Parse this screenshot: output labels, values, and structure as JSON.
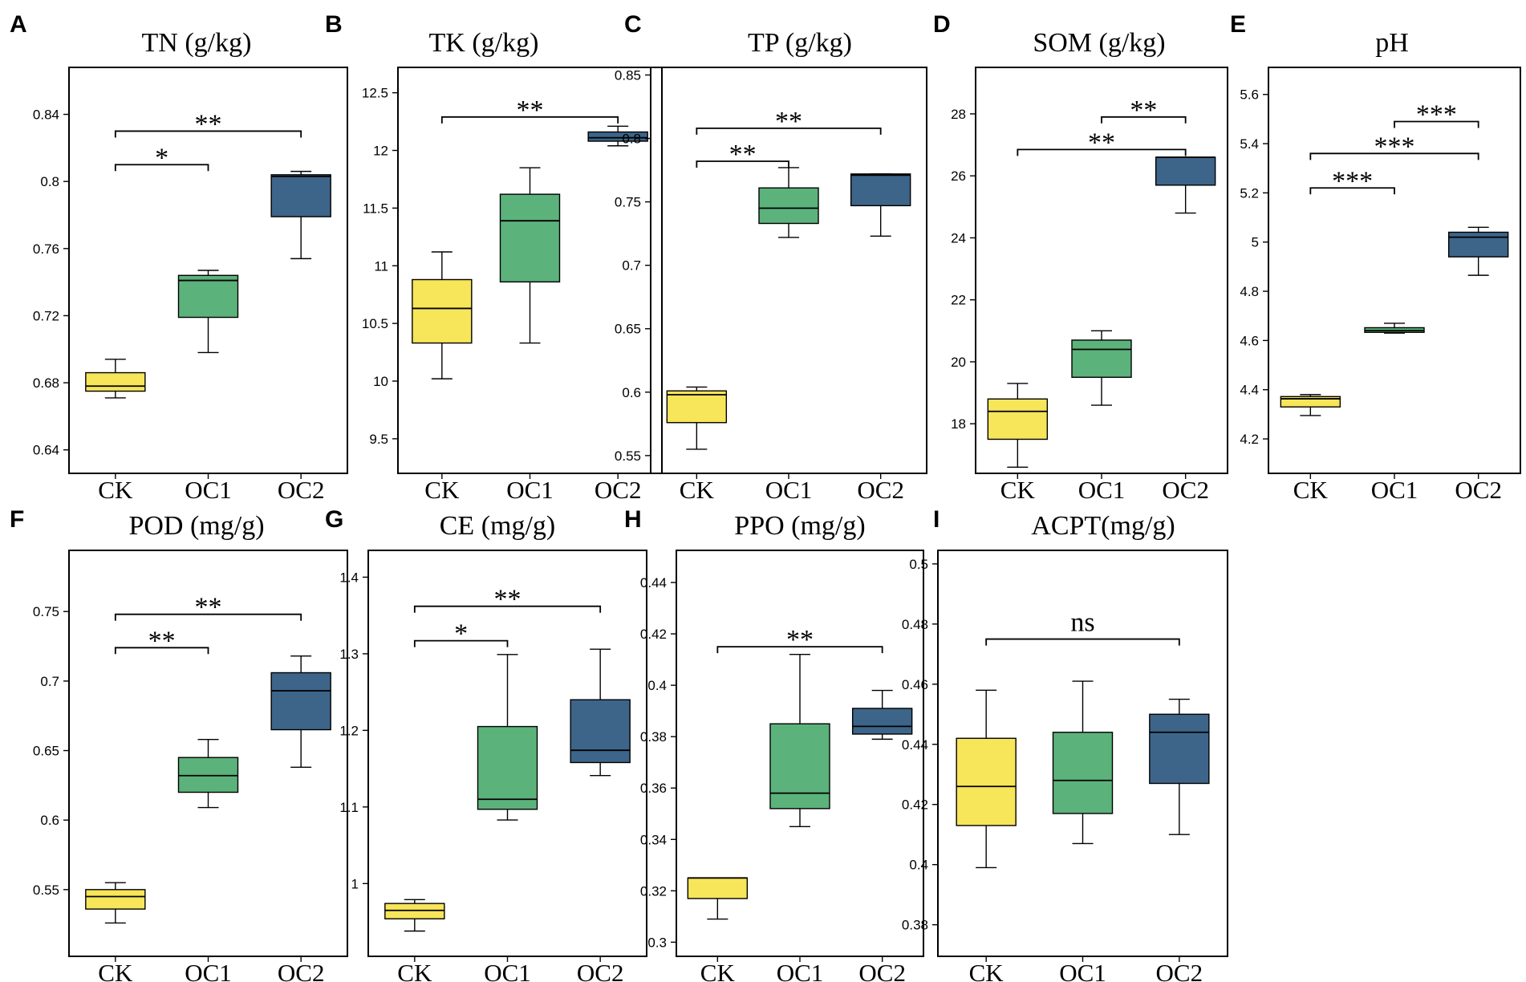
{
  "figure": {
    "colors": {
      "CK": "#f7e55a",
      "OC1": "#5cb27b",
      "OC2": "#3d6589"
    }
  },
  "chart_data": [
    {
      "type": "box",
      "letter": "A",
      "title": "TN (g/kg)",
      "ylim": [
        0.626,
        0.868
      ],
      "yticks": [
        0.64,
        0.68,
        0.72,
        0.76,
        0.8,
        0.84
      ],
      "ytick_labels": [
        "0.64",
        "0.68",
        "0.72",
        "0.76",
        "0.8",
        "0.84"
      ],
      "categories": [
        "CK",
        "OC1",
        "OC2"
      ],
      "boxes": [
        {
          "group": "CK",
          "min": 0.671,
          "q1": 0.675,
          "median": 0.678,
          "q3": 0.686,
          "max": 0.694
        },
        {
          "group": "OC1",
          "min": 0.698,
          "q1": 0.719,
          "median": 0.741,
          "q3": 0.744,
          "max": 0.747
        },
        {
          "group": "OC2",
          "min": 0.754,
          "q1": 0.779,
          "median": 0.803,
          "q3": 0.804,
          "max": 0.806
        }
      ],
      "significance": [
        {
          "from": "CK",
          "to": "OC1",
          "y": 0.81,
          "label": "*"
        },
        {
          "from": "CK",
          "to": "OC2",
          "y": 0.83,
          "label": "**"
        }
      ]
    },
    {
      "type": "box",
      "letter": "B",
      "title": "TK (g/kg)",
      "ylim": [
        9.2,
        12.72
      ],
      "yticks": [
        9.5,
        10,
        10.5,
        11,
        11.5,
        12,
        12.5
      ],
      "ytick_labels": [
        "9.5",
        "10",
        "10.5",
        "11",
        "11.5",
        "12",
        "12.5"
      ],
      "categories": [
        "CK",
        "OC1",
        "OC2"
      ],
      "boxes": [
        {
          "group": "CK",
          "min": 10.02,
          "q1": 10.33,
          "median": 10.63,
          "q3": 10.88,
          "max": 11.12
        },
        {
          "group": "OC1",
          "min": 10.33,
          "q1": 10.86,
          "median": 11.39,
          "q3": 11.62,
          "max": 11.85
        },
        {
          "group": "OC2",
          "min": 12.04,
          "q1": 12.08,
          "median": 12.11,
          "q3": 12.16,
          "max": 12.21
        }
      ],
      "significance": [
        {
          "from": "CK",
          "to": "OC2",
          "y": 12.29,
          "label": "**"
        }
      ]
    },
    {
      "type": "box",
      "letter": "C",
      "title": "TP (g/kg)",
      "ylim": [
        0.536,
        0.856
      ],
      "yticks": [
        0.55,
        0.6,
        0.65,
        0.7,
        0.75,
        0.8,
        0.85
      ],
      "ytick_labels": [
        "0.55",
        "0.6",
        "0.65",
        "0.7",
        "0.75",
        "0.8",
        "0.85"
      ],
      "categories": [
        "CK",
        "OC1",
        "OC2"
      ],
      "boxes": [
        {
          "group": "CK",
          "min": 0.555,
          "q1": 0.576,
          "median": 0.598,
          "q3": 0.601,
          "max": 0.604
        },
        {
          "group": "OC1",
          "min": 0.722,
          "q1": 0.733,
          "median": 0.745,
          "q3": 0.761,
          "max": 0.777
        },
        {
          "group": "OC2",
          "min": 0.723,
          "q1": 0.747,
          "median": 0.771,
          "q3": 0.772,
          "max": 0.772
        }
      ],
      "significance": [
        {
          "from": "CK",
          "to": "OC1",
          "y": 0.782,
          "label": "**"
        },
        {
          "from": "CK",
          "to": "OC2",
          "y": 0.808,
          "label": "**"
        }
      ]
    },
    {
      "type": "box",
      "letter": "D",
      "title": "SOM (g/kg)",
      "ylim": [
        16.4,
        29.5
      ],
      "yticks": [
        18,
        20,
        22,
        24,
        26,
        28
      ],
      "ytick_labels": [
        "18",
        "20",
        "22",
        "24",
        "26",
        "28"
      ],
      "categories": [
        "CK",
        "OC1",
        "OC2"
      ],
      "boxes": [
        {
          "group": "CK",
          "min": 16.6,
          "q1": 17.5,
          "median": 18.4,
          "q3": 18.8,
          "max": 19.3
        },
        {
          "group": "OC1",
          "min": 18.6,
          "q1": 19.5,
          "median": 20.4,
          "q3": 20.7,
          "max": 21.0
        },
        {
          "group": "OC2",
          "min": 24.8,
          "q1": 25.7,
          "median": 26.6,
          "q3": 26.6,
          "max": 26.6
        }
      ],
      "significance": [
        {
          "from": "CK",
          "to": "OC2",
          "y": 26.85,
          "label": "**"
        },
        {
          "from": "OC1",
          "to": "OC2",
          "y": 27.9,
          "label": "**"
        }
      ]
    },
    {
      "type": "box",
      "letter": "E",
      "title": "pH",
      "ylim": [
        4.06,
        5.71
      ],
      "yticks": [
        4.2,
        4.4,
        4.6,
        4.8,
        5,
        5.2,
        5.4,
        5.6
      ],
      "ytick_labels": [
        "4.2",
        "4.4",
        "4.6",
        "4.8",
        "5",
        "5.2",
        "5.4",
        "5.6"
      ],
      "categories": [
        "CK",
        "OC1",
        "OC2"
      ],
      "boxes": [
        {
          "group": "CK",
          "min": 4.295,
          "q1": 4.33,
          "median": 4.363,
          "q3": 4.372,
          "max": 4.38
        },
        {
          "group": "OC1",
          "min": 4.63,
          "q1": 4.633,
          "median": 4.64,
          "q3": 4.652,
          "max": 4.67
        },
        {
          "group": "OC2",
          "min": 4.865,
          "q1": 4.94,
          "median": 5.02,
          "q3": 5.04,
          "max": 5.06
        }
      ],
      "significance": [
        {
          "from": "CK",
          "to": "OC1",
          "y": 5.22,
          "label": "***"
        },
        {
          "from": "CK",
          "to": "OC2",
          "y": 5.36,
          "label": "***"
        },
        {
          "from": "OC1",
          "to": "OC2",
          "y": 5.49,
          "label": "***"
        }
      ]
    },
    {
      "type": "box",
      "letter": "F",
      "title": "POD (mg/g)",
      "ylim": [
        0.502,
        0.794
      ],
      "yticks": [
        0.55,
        0.6,
        0.65,
        0.7,
        0.75
      ],
      "ytick_labels": [
        "0.55",
        "0.6",
        "0.65",
        "0.7",
        "0.75"
      ],
      "categories": [
        "CK",
        "OC1",
        "OC2"
      ],
      "boxes": [
        {
          "group": "CK",
          "min": 0.526,
          "q1": 0.536,
          "median": 0.545,
          "q3": 0.55,
          "max": 0.555
        },
        {
          "group": "OC1",
          "min": 0.609,
          "q1": 0.62,
          "median": 0.632,
          "q3": 0.645,
          "max": 0.658
        },
        {
          "group": "OC2",
          "min": 0.638,
          "q1": 0.665,
          "median": 0.693,
          "q3": 0.706,
          "max": 0.718
        }
      ],
      "significance": [
        {
          "from": "CK",
          "to": "OC1",
          "y": 0.724,
          "label": "**"
        },
        {
          "from": "CK",
          "to": "OC2",
          "y": 0.748,
          "label": "**"
        }
      ]
    },
    {
      "type": "box",
      "letter": "G",
      "title": "CE (mg/g)",
      "ylim": [
        0.905,
        1.435
      ],
      "yticks": [
        1,
        1.1,
        1.2,
        1.3,
        1.4
      ],
      "ytick_labels": [
        "1",
        "1.1",
        "1.2",
        "1.3",
        "1.4"
      ],
      "categories": [
        "CK",
        "OC1",
        "OC2"
      ],
      "boxes": [
        {
          "group": "CK",
          "min": 0.938,
          "q1": 0.954,
          "median": 0.965,
          "q3": 0.974,
          "max": 0.979
        },
        {
          "group": "OC1",
          "min": 1.083,
          "q1": 1.097,
          "median": 1.11,
          "q3": 1.205,
          "max": 1.299
        },
        {
          "group": "OC2",
          "min": 1.141,
          "q1": 1.158,
          "median": 1.174,
          "q3": 1.24,
          "max": 1.306
        }
      ],
      "significance": [
        {
          "from": "CK",
          "to": "OC1",
          "y": 1.317,
          "label": "*"
        },
        {
          "from": "CK",
          "to": "OC2",
          "y": 1.362,
          "label": "**"
        }
      ]
    },
    {
      "type": "box",
      "letter": "H",
      "title": "PPO (mg/g)",
      "ylim": [
        0.2945,
        0.4525
      ],
      "yticks": [
        0.3,
        0.32,
        0.34,
        0.36,
        0.38,
        0.4,
        0.42,
        0.44
      ],
      "ytick_labels": [
        "0.3",
        "0.32",
        "0.34",
        "0.36",
        "0.38",
        "0.4",
        "0.42",
        "0.44"
      ],
      "categories": [
        "CK",
        "OC1",
        "OC2"
      ],
      "boxes": [
        {
          "group": "CK",
          "min": 0.309,
          "q1": 0.317,
          "median": 0.325,
          "q3": 0.325,
          "max": 0.325
        },
        {
          "group": "OC1",
          "min": 0.345,
          "q1": 0.352,
          "median": 0.358,
          "q3": 0.385,
          "max": 0.412
        },
        {
          "group": "OC2",
          "min": 0.379,
          "q1": 0.381,
          "median": 0.384,
          "q3": 0.391,
          "max": 0.398
        }
      ],
      "significance": [
        {
          "from": "CK",
          "to": "OC2",
          "y": 0.415,
          "label": "**"
        }
      ]
    },
    {
      "type": "box",
      "letter": "I",
      "title": "ACPT(mg/g)",
      "ylim": [
        0.3695,
        0.5045
      ],
      "yticks": [
        0.38,
        0.4,
        0.42,
        0.44,
        0.46,
        0.48,
        0.5
      ],
      "ytick_labels": [
        "0.38",
        "0.4",
        "0.42",
        "0.44",
        "0.46",
        "0.48",
        "0.5"
      ],
      "categories": [
        "CK",
        "OC1",
        "OC2"
      ],
      "boxes": [
        {
          "group": "CK",
          "min": 0.399,
          "q1": 0.413,
          "median": 0.426,
          "q3": 0.442,
          "max": 0.458
        },
        {
          "group": "OC1",
          "min": 0.407,
          "q1": 0.417,
          "median": 0.428,
          "q3": 0.444,
          "max": 0.461
        },
        {
          "group": "OC2",
          "min": 0.41,
          "q1": 0.427,
          "median": 0.444,
          "q3": 0.45,
          "max": 0.455
        }
      ],
      "significance": [
        {
          "from": "CK",
          "to": "OC2",
          "y": 0.475,
          "label": "ns"
        }
      ]
    }
  ]
}
